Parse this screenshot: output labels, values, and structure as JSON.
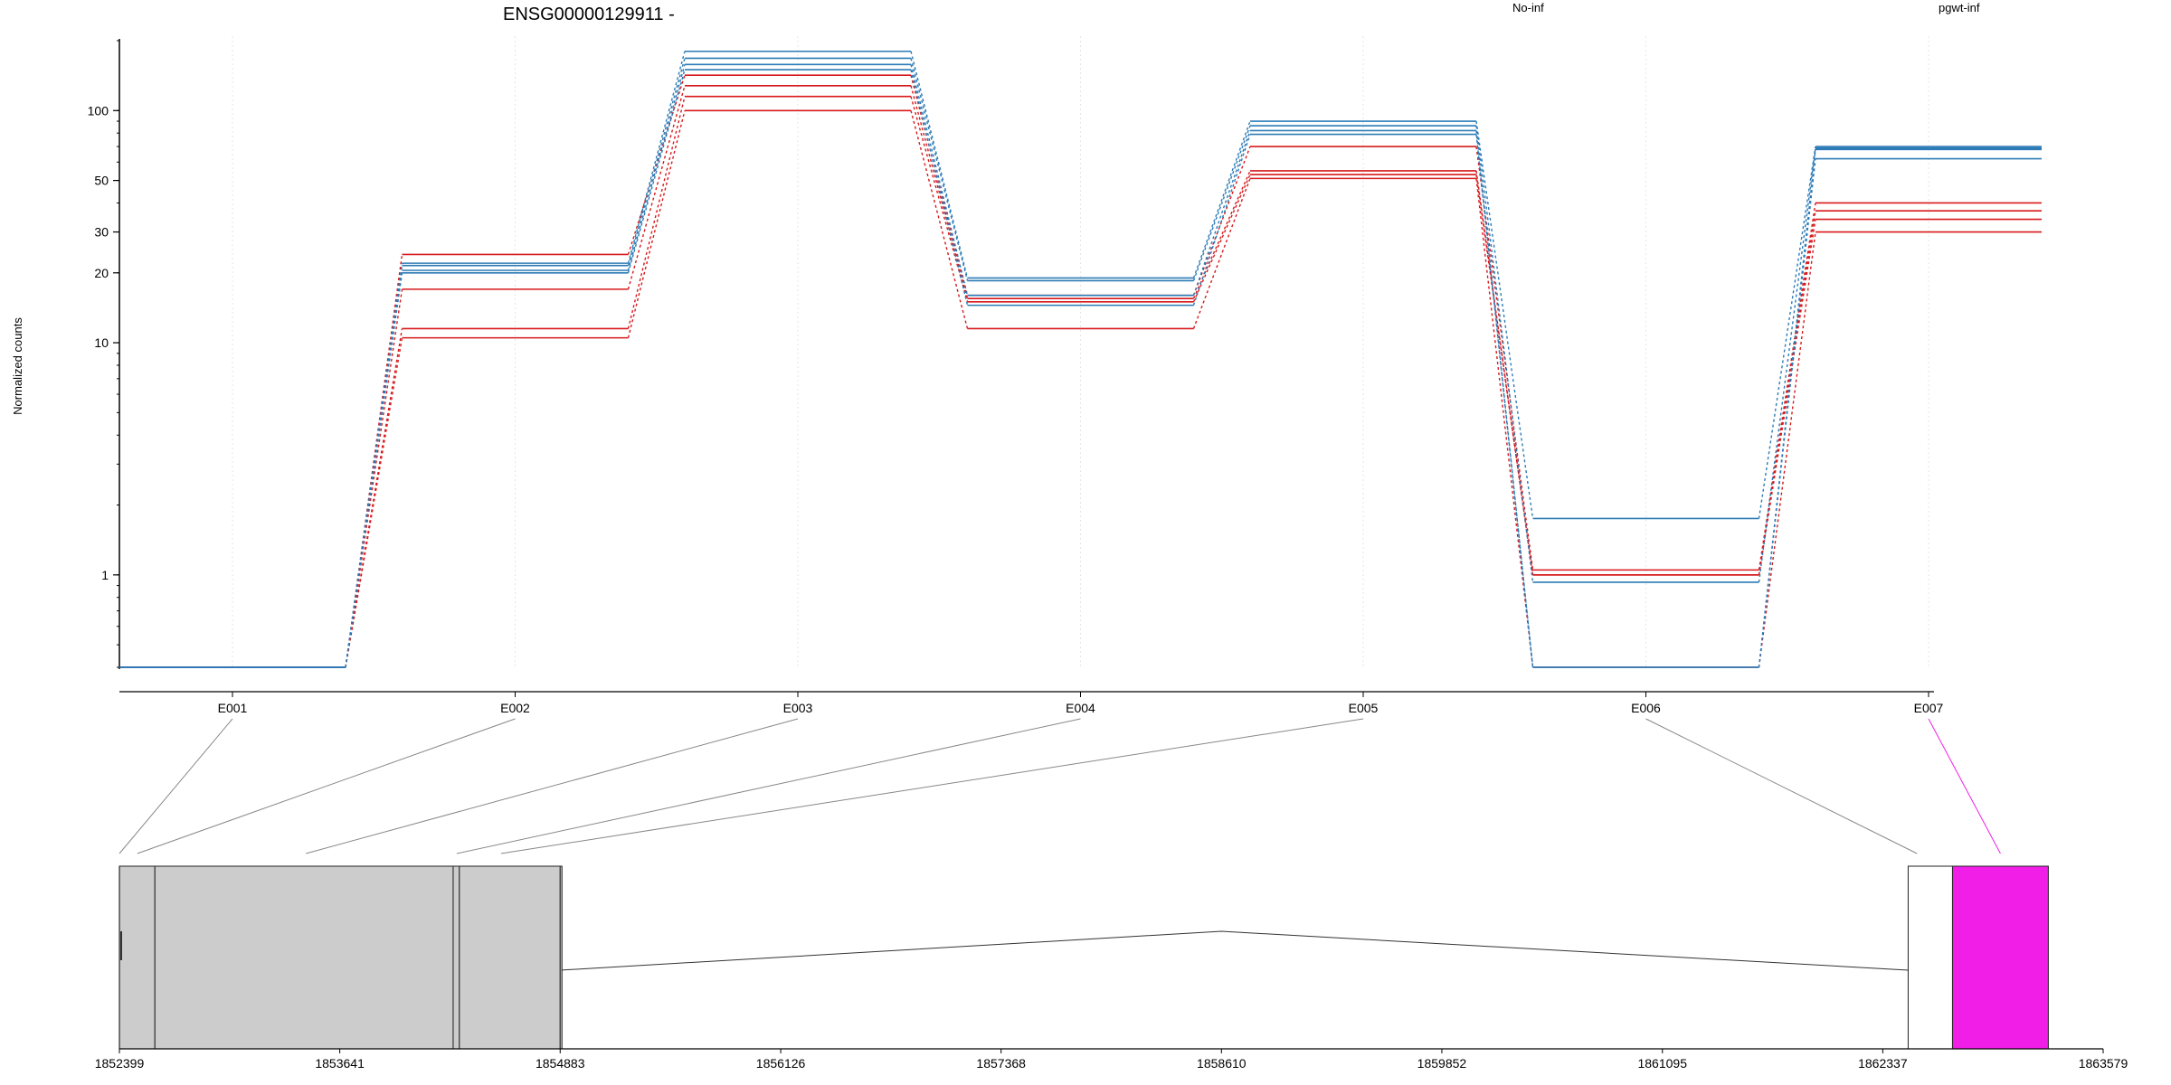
{
  "chart_data": [
    {
      "type": "line",
      "title": "ENSG00000129911 -",
      "ylabel": "Normalized counts",
      "y_scale": "log",
      "ylim": [
        0.4,
        200
      ],
      "grid": "vertical only (light dotted, at each exon)",
      "legend_placement": "top-right",
      "categories": [
        "E001",
        "E002",
        "E003",
        "E004",
        "E005",
        "E006",
        "E007"
      ],
      "y_ticks": [
        "1",
        "10",
        "20",
        "30",
        "50",
        "100"
      ],
      "y_tick_values": [
        1,
        10,
        20,
        30,
        50,
        100
      ],
      "groups": [
        {
          "name": "No-inf",
          "color": "#d7191c",
          "series": [
            [
              0.4,
              24,
              142,
              16,
              70,
              1.05,
              40
            ],
            [
              0.4,
              17,
              128,
              15.5,
              55,
              1.0,
              37
            ],
            [
              0.4,
              11.5,
              115,
              15,
              53,
              1.0,
              34
            ],
            [
              0.4,
              10.5,
              100,
              11.5,
              51,
              0.4,
              30
            ]
          ]
        },
        {
          "name": "pgwt-inf",
          "color": "#2c7bb6",
          "series": [
            [
              0.4,
              22,
              180,
              19,
              90,
              1.75,
              70
            ],
            [
              0.4,
              21.5,
              168,
              18.5,
              86,
              0.93,
              69
            ],
            [
              0.4,
              20.5,
              158,
              16,
              82,
              0.4,
              68
            ],
            [
              0.4,
              20,
              150,
              14.5,
              79,
              0.4,
              62
            ]
          ]
        }
      ]
    },
    {
      "type": "gene-model",
      "x_ticks": [
        "1852399",
        "1853641",
        "1854883",
        "1856126",
        "1857368",
        "1858610",
        "1859852",
        "1861095",
        "1862337",
        "1863579"
      ],
      "x_tick_values": [
        1852399,
        1853641,
        1854883,
        1856126,
        1857368,
        1858610,
        1859852,
        1861095,
        1862337,
        1863579
      ],
      "xlim": [
        1852399,
        1863579
      ],
      "exons": [
        {
          "id": "E001",
          "start": 1852399,
          "end": 1852599,
          "fill": "#cccccc"
        },
        {
          "id": "E002",
          "start": 1852599,
          "end": 1854280,
          "fill": "#cccccc"
        },
        {
          "id": "E003",
          "start": 1854280,
          "end": 1854315,
          "fill": "#cccccc"
        },
        {
          "id": "E004",
          "start": 1854315,
          "end": 1854883,
          "fill": "#cccccc"
        },
        {
          "id": "E005",
          "start": 1854883,
          "end": 1854883,
          "fill": "#cccccc"
        },
        {
          "id": "E006",
          "start": 1862480,
          "end": 1862730,
          "fill": "#ffffff"
        },
        {
          "id": "E007",
          "start": 1862730,
          "end": 1863270,
          "fill": "#f01ee6"
        }
      ],
      "connector_targets": [
        1852399,
        1852500,
        1853450,
        1854300,
        1854550,
        1862530,
        1863000
      ],
      "highlight_color": "#f01ee6",
      "intron": {
        "start": 1854883,
        "peak": 1858610,
        "end": 1862480
      }
    }
  ]
}
